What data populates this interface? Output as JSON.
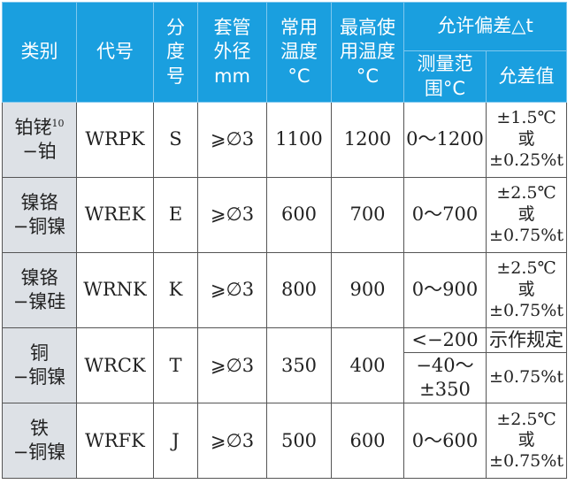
{
  "header": {
    "category": "类别",
    "code": "代号",
    "graduation": [
      "分",
      "度",
      "号"
    ],
    "sheath": [
      "套管",
      "外径",
      "mm"
    ],
    "normal_temp": [
      "常用",
      "温度",
      "°C"
    ],
    "max_temp": [
      "最高使",
      "用温度",
      "°C"
    ],
    "tolerance": "允许偏差△t",
    "range": [
      "测量范",
      "围°C"
    ],
    "tol_value": "允差值"
  },
  "header_color": "#1a9fdf",
  "rows": [
    {
      "cat1": "铂铑",
      "sup": "10",
      "cat2": "−铂",
      "code": "WRPK",
      "grad": "S",
      "sheath": "⩾∅3",
      "normal": "1100",
      "max": "1200",
      "range": "0～1200",
      "tol": [
        "±1.5℃",
        "或",
        "±0.25%t"
      ]
    },
    {
      "cat1": "镍铬",
      "cat2": "−铜镍",
      "code": "WREK",
      "grad": "E",
      "sheath": "⩾∅3",
      "normal": "600",
      "max": "700",
      "range": "0～700",
      "tol": [
        "±2.5℃",
        "或",
        "±0.75%t"
      ]
    },
    {
      "cat1": "镍铬",
      "cat2": "−镍硅",
      "code": "WRNK",
      "grad": "K",
      "sheath": "⩾∅3",
      "normal": "800",
      "max": "900",
      "range": "0～900",
      "tol": [
        "±2.5℃",
        "或",
        "±0.75%t"
      ]
    },
    {
      "cat1": "铜",
      "cat2": "−铜镍",
      "code": "WRCK",
      "grad": "T",
      "sheath": "⩾∅3",
      "normal": "350",
      "max": "400",
      "range_a": "<−200",
      "tol_a": "示作规定",
      "range_b": [
        "−40～",
        "±350"
      ],
      "tol_b": "±0.75%t"
    },
    {
      "cat1": "铁",
      "cat2": "−铜镍",
      "code": "WRFK",
      "grad": "J",
      "sheath": "⩾∅3",
      "normal": "500",
      "max": "600",
      "range": "0～600",
      "tol": [
        "±2.5℃",
        "或",
        "±0.75%t"
      ]
    }
  ]
}
